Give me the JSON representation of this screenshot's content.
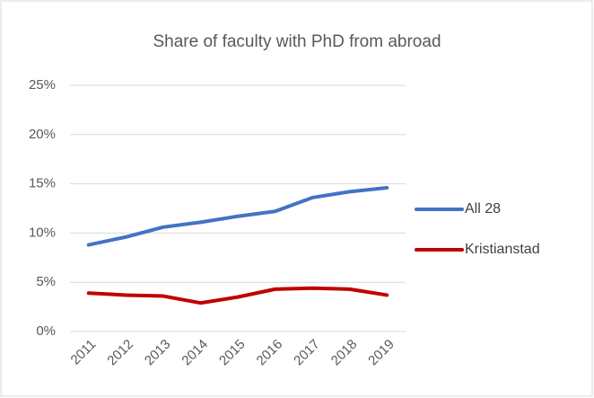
{
  "chart_data": {
    "type": "line",
    "title": "Share of faculty with PhD from abroad",
    "categories": [
      "2011",
      "2012",
      "2013",
      "2014",
      "2015",
      "2016",
      "2017",
      "2018",
      "2019"
    ],
    "series": [
      {
        "name": "All 28",
        "color": "#4472c4",
        "values": [
          8.8,
          9.6,
          10.6,
          11.1,
          11.7,
          12.2,
          13.6,
          14.2,
          14.6
        ]
      },
      {
        "name": "Kristianstad",
        "color": "#c00000",
        "values": [
          3.9,
          3.7,
          3.6,
          2.9,
          3.5,
          4.3,
          4.4,
          4.3,
          3.7
        ]
      }
    ],
    "ylim": [
      0,
      25
    ],
    "yticks": [
      {
        "value": 0,
        "label": "0%"
      },
      {
        "value": 5,
        "label": "5%"
      },
      {
        "value": 10,
        "label": "10%"
      },
      {
        "value": 15,
        "label": "15%"
      },
      {
        "value": 20,
        "label": "20%"
      },
      {
        "value": 25,
        "label": "25%"
      }
    ],
    "grid": true,
    "legend": "right"
  }
}
